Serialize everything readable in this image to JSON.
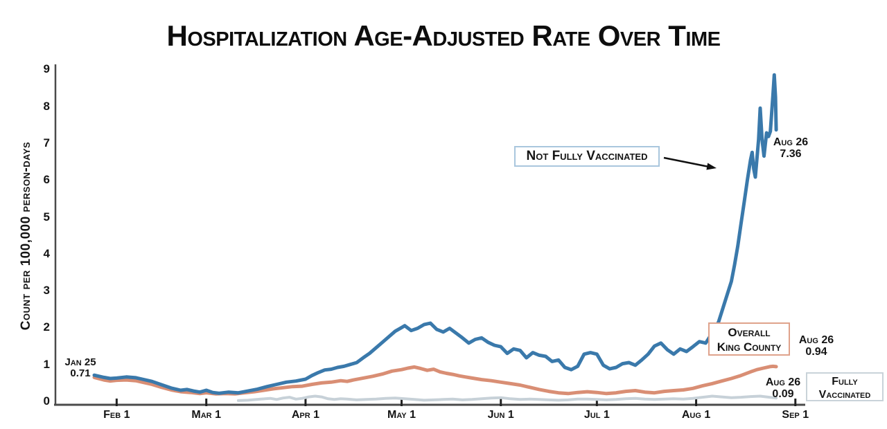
{
  "title": "Hospitalization Age-Adjusted Rate Over Time",
  "y_axis": {
    "label": "Count per 100,000 person-days",
    "ticks": [
      "0",
      "1",
      "2",
      "3",
      "4",
      "5",
      "6",
      "7",
      "8",
      "9"
    ]
  },
  "x_axis": {
    "ticks": [
      {
        "label": "Feb 1",
        "day": 7
      },
      {
        "label": "Mar 1",
        "day": 35
      },
      {
        "label": "Apr 1",
        "day": 66
      },
      {
        "label": "May 1",
        "day": 96
      },
      {
        "label": "Jun 1",
        "day": 127
      },
      {
        "label": "Jul 1",
        "day": 157
      },
      {
        "label": "Aug 1",
        "day": 188
      },
      {
        "label": "Sep 1",
        "day": 219
      }
    ]
  },
  "legend_boxes": {
    "not_fully": {
      "label": "Not Fully Vaccinated"
    },
    "overall": {
      "line1": "Overall",
      "line2": "King County"
    },
    "fully": {
      "line1": "Fully",
      "line2": "Vaccinated"
    }
  },
  "annotations": {
    "start": {
      "date": "Jan 25",
      "value": "0.71"
    },
    "not_fully_end": {
      "date": "Aug 26",
      "value": "7.36"
    },
    "overall_end": {
      "date": "Aug 26",
      "value": "0.94"
    },
    "fully_end": {
      "date": "Aug 26",
      "value": "0.09"
    }
  },
  "colors": {
    "not_fully_line": "#3a79ab",
    "overall_line": "#d98e74",
    "fully_line": "#c7d1d8",
    "axis": "#4a4a4a",
    "not_fully_box_border": "#a9c6dd",
    "overall_box_border": "#dfa28b",
    "fully_box_border": "#c9d3d9",
    "arrow": "#111111"
  },
  "chart_data": {
    "type": "line",
    "title": "Hospitalization Age-Adjusted Rate Over Time",
    "xlabel": "",
    "ylabel": "Count per 100,000 person-days",
    "ylim": [
      0,
      9
    ],
    "grid": false,
    "legend_position": "inline-annotated-boxes",
    "x_unit": "days since Jan 25",
    "x_start_date": "Jan 25",
    "x_end_date": "Aug 26",
    "x_tick_labels": [
      "Feb 1",
      "Mar 1",
      "Apr 1",
      "May 1",
      "Jun 1",
      "Jul 1",
      "Aug 1",
      "Sep 1"
    ],
    "series": [
      {
        "name": "Fully Vaccinated",
        "color": "#c7d1d8",
        "endpoint": {
          "date": "Aug 26",
          "value": 0.09
        },
        "points": [
          [
            45,
            0.02
          ],
          [
            48,
            0.03
          ],
          [
            52,
            0.06
          ],
          [
            55,
            0.08
          ],
          [
            57,
            0.05
          ],
          [
            59,
            0.09
          ],
          [
            61,
            0.11
          ],
          [
            63,
            0.06
          ],
          [
            65,
            0.08
          ],
          [
            67,
            0.12
          ],
          [
            69,
            0.14
          ],
          [
            71,
            0.12
          ],
          [
            73,
            0.07
          ],
          [
            75,
            0.05
          ],
          [
            77,
            0.07
          ],
          [
            79,
            0.06
          ],
          [
            82,
            0.04
          ],
          [
            85,
            0.05
          ],
          [
            88,
            0.06
          ],
          [
            91,
            0.08
          ],
          [
            94,
            0.09
          ],
          [
            97,
            0.07
          ],
          [
            100,
            0.05
          ],
          [
            103,
            0.03
          ],
          [
            106,
            0.04
          ],
          [
            109,
            0.05
          ],
          [
            112,
            0.06
          ],
          [
            115,
            0.04
          ],
          [
            118,
            0.05
          ],
          [
            121,
            0.07
          ],
          [
            124,
            0.09
          ],
          [
            127,
            0.1
          ],
          [
            130,
            0.07
          ],
          [
            133,
            0.05
          ],
          [
            136,
            0.06
          ],
          [
            139,
            0.05
          ],
          [
            142,
            0.04
          ],
          [
            145,
            0.03
          ],
          [
            148,
            0.04
          ],
          [
            151,
            0.06
          ],
          [
            154,
            0.06
          ],
          [
            157,
            0.05
          ],
          [
            160,
            0.04
          ],
          [
            163,
            0.05
          ],
          [
            166,
            0.07
          ],
          [
            169,
            0.08
          ],
          [
            172,
            0.06
          ],
          [
            175,
            0.05
          ],
          [
            178,
            0.06
          ],
          [
            181,
            0.07
          ],
          [
            184,
            0.06
          ],
          [
            187,
            0.08
          ],
          [
            190,
            0.11
          ],
          [
            193,
            0.14
          ],
          [
            196,
            0.12
          ],
          [
            199,
            0.1
          ],
          [
            202,
            0.11
          ],
          [
            205,
            0.13
          ],
          [
            208,
            0.14
          ],
          [
            210,
            0.12
          ],
          [
            212,
            0.1
          ],
          [
            213,
            0.09
          ]
        ]
      },
      {
        "name": "Overall King County",
        "color": "#d98e74",
        "endpoint": {
          "date": "Aug 26",
          "value": 0.94
        },
        "points": [
          [
            0,
            0.65
          ],
          [
            3,
            0.58
          ],
          [
            5,
            0.55
          ],
          [
            7,
            0.57
          ],
          [
            10,
            0.58
          ],
          [
            13,
            0.56
          ],
          [
            15,
            0.52
          ],
          [
            18,
            0.46
          ],
          [
            21,
            0.38
          ],
          [
            24,
            0.31
          ],
          [
            27,
            0.26
          ],
          [
            30,
            0.24
          ],
          [
            33,
            0.21
          ],
          [
            35,
            0.23
          ],
          [
            38,
            0.2
          ],
          [
            41,
            0.21
          ],
          [
            44,
            0.2
          ],
          [
            47,
            0.23
          ],
          [
            50,
            0.26
          ],
          [
            53,
            0.3
          ],
          [
            56,
            0.34
          ],
          [
            59,
            0.37
          ],
          [
            62,
            0.4
          ],
          [
            65,
            0.41
          ],
          [
            68,
            0.46
          ],
          [
            71,
            0.5
          ],
          [
            74,
            0.52
          ],
          [
            77,
            0.56
          ],
          [
            79,
            0.54
          ],
          [
            81,
            0.58
          ],
          [
            84,
            0.63
          ],
          [
            87,
            0.68
          ],
          [
            90,
            0.74
          ],
          [
            93,
            0.82
          ],
          [
            96,
            0.86
          ],
          [
            98,
            0.9
          ],
          [
            100,
            0.93
          ],
          [
            102,
            0.89
          ],
          [
            104,
            0.84
          ],
          [
            106,
            0.87
          ],
          [
            108,
            0.8
          ],
          [
            110,
            0.76
          ],
          [
            112,
            0.73
          ],
          [
            114,
            0.69
          ],
          [
            116,
            0.66
          ],
          [
            118,
            0.63
          ],
          [
            121,
            0.59
          ],
          [
            124,
            0.56
          ],
          [
            127,
            0.52
          ],
          [
            130,
            0.48
          ],
          [
            133,
            0.44
          ],
          [
            136,
            0.38
          ],
          [
            139,
            0.32
          ],
          [
            142,
            0.27
          ],
          [
            145,
            0.23
          ],
          [
            148,
            0.21
          ],
          [
            151,
            0.24
          ],
          [
            154,
            0.26
          ],
          [
            157,
            0.24
          ],
          [
            160,
            0.21
          ],
          [
            163,
            0.23
          ],
          [
            166,
            0.27
          ],
          [
            169,
            0.29
          ],
          [
            172,
            0.25
          ],
          [
            175,
            0.23
          ],
          [
            178,
            0.27
          ],
          [
            181,
            0.29
          ],
          [
            184,
            0.31
          ],
          [
            187,
            0.35
          ],
          [
            190,
            0.42
          ],
          [
            193,
            0.48
          ],
          [
            196,
            0.55
          ],
          [
            199,
            0.62
          ],
          [
            202,
            0.7
          ],
          [
            205,
            0.8
          ],
          [
            207,
            0.86
          ],
          [
            209,
            0.9
          ],
          [
            211,
            0.94
          ],
          [
            212,
            0.95
          ],
          [
            213,
            0.94
          ]
        ]
      },
      {
        "name": "Not Fully Vaccinated",
        "color": "#3a79ab",
        "endpoint": {
          "date": "Aug 26",
          "value": 7.36
        },
        "startpoint": {
          "date": "Jan 25",
          "value": 0.71
        },
        "points": [
          [
            0,
            0.71
          ],
          [
            3,
            0.65
          ],
          [
            5,
            0.62
          ],
          [
            7,
            0.63
          ],
          [
            10,
            0.66
          ],
          [
            13,
            0.64
          ],
          [
            15,
            0.6
          ],
          [
            18,
            0.54
          ],
          [
            21,
            0.45
          ],
          [
            24,
            0.36
          ],
          [
            27,
            0.3
          ],
          [
            29,
            0.32
          ],
          [
            31,
            0.28
          ],
          [
            33,
            0.25
          ],
          [
            35,
            0.3
          ],
          [
            37,
            0.24
          ],
          [
            39,
            0.22
          ],
          [
            42,
            0.25
          ],
          [
            45,
            0.23
          ],
          [
            48,
            0.28
          ],
          [
            51,
            0.33
          ],
          [
            54,
            0.4
          ],
          [
            57,
            0.46
          ],
          [
            60,
            0.52
          ],
          [
            63,
            0.55
          ],
          [
            66,
            0.6
          ],
          [
            68,
            0.7
          ],
          [
            70,
            0.78
          ],
          [
            72,
            0.85
          ],
          [
            74,
            0.87
          ],
          [
            76,
            0.92
          ],
          [
            78,
            0.95
          ],
          [
            80,
            1.0
          ],
          [
            82,
            1.05
          ],
          [
            84,
            1.18
          ],
          [
            86,
            1.3
          ],
          [
            88,
            1.45
          ],
          [
            90,
            1.6
          ],
          [
            92,
            1.75
          ],
          [
            94,
            1.9
          ],
          [
            96,
            2.0
          ],
          [
            97,
            2.05
          ],
          [
            99,
            1.92
          ],
          [
            101,
            1.98
          ],
          [
            103,
            2.08
          ],
          [
            105,
            2.12
          ],
          [
            107,
            1.95
          ],
          [
            109,
            1.88
          ],
          [
            111,
            1.98
          ],
          [
            113,
            1.85
          ],
          [
            115,
            1.72
          ],
          [
            117,
            1.58
          ],
          [
            119,
            1.68
          ],
          [
            121,
            1.72
          ],
          [
            123,
            1.6
          ],
          [
            125,
            1.52
          ],
          [
            127,
            1.48
          ],
          [
            129,
            1.3
          ],
          [
            131,
            1.42
          ],
          [
            133,
            1.38
          ],
          [
            135,
            1.18
          ],
          [
            137,
            1.32
          ],
          [
            139,
            1.25
          ],
          [
            141,
            1.22
          ],
          [
            143,
            1.08
          ],
          [
            145,
            1.12
          ],
          [
            147,
            0.92
          ],
          [
            149,
            0.86
          ],
          [
            151,
            0.95
          ],
          [
            153,
            1.28
          ],
          [
            155,
            1.32
          ],
          [
            157,
            1.28
          ],
          [
            159,
            0.98
          ],
          [
            161,
            0.88
          ],
          [
            163,
            0.92
          ],
          [
            165,
            1.02
          ],
          [
            167,
            1.05
          ],
          [
            169,
            0.98
          ],
          [
            171,
            1.12
          ],
          [
            173,
            1.28
          ],
          [
            175,
            1.5
          ],
          [
            177,
            1.58
          ],
          [
            179,
            1.4
          ],
          [
            181,
            1.28
          ],
          [
            183,
            1.42
          ],
          [
            185,
            1.35
          ],
          [
            187,
            1.48
          ],
          [
            189,
            1.62
          ],
          [
            191,
            1.58
          ],
          [
            193,
            1.85
          ],
          [
            195,
            2.15
          ],
          [
            197,
            2.7
          ],
          [
            199,
            3.25
          ],
          [
            200,
            3.7
          ],
          [
            201,
            4.2
          ],
          [
            202,
            4.8
          ],
          [
            203,
            5.4
          ],
          [
            204,
            6.0
          ],
          [
            205,
            6.55
          ],
          [
            205.5,
            6.75
          ],
          [
            206,
            6.3
          ],
          [
            206.5,
            6.08
          ],
          [
            207.5,
            7.1
          ],
          [
            208,
            7.95
          ],
          [
            208.6,
            7.1
          ],
          [
            209.2,
            6.65
          ],
          [
            210,
            7.28
          ],
          [
            210.6,
            7.18
          ],
          [
            211.2,
            7.32
          ],
          [
            212,
            8.3
          ],
          [
            212.4,
            8.85
          ],
          [
            212.8,
            8.25
          ],
          [
            213,
            7.36
          ]
        ]
      }
    ]
  }
}
